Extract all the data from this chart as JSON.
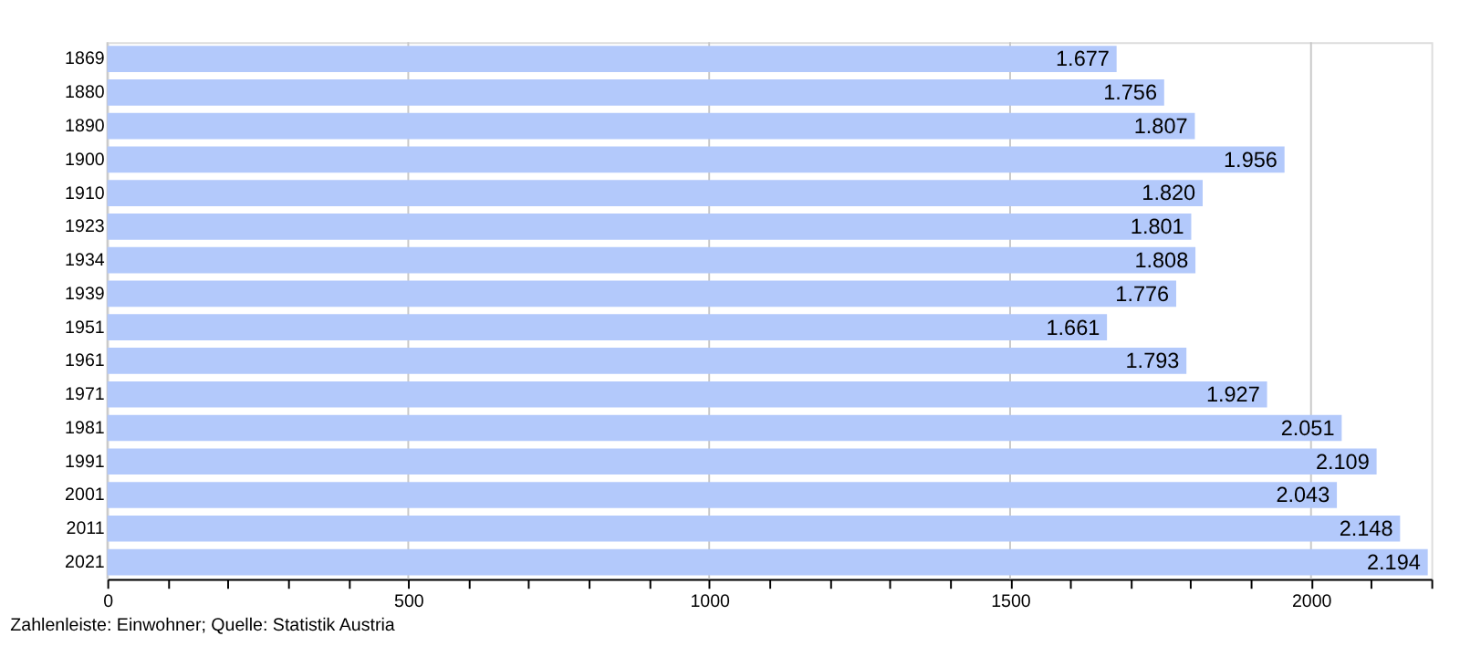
{
  "chart_data": {
    "type": "bar",
    "orientation": "horizontal",
    "categories": [
      "1869",
      "1880",
      "1890",
      "1900",
      "1910",
      "1923",
      "1934",
      "1939",
      "1951",
      "1961",
      "1971",
      "1981",
      "1991",
      "2001",
      "2011",
      "2021"
    ],
    "values": [
      1677,
      1756,
      1807,
      1956,
      1820,
      1801,
      1808,
      1776,
      1661,
      1793,
      1927,
      2051,
      2109,
      2043,
      2148,
      2194
    ],
    "value_labels": [
      "1.677",
      "1.756",
      "1.807",
      "1.956",
      "1.820",
      "1.801",
      "1.808",
      "1.776",
      "1.661",
      "1.793",
      "1.927",
      "2.051",
      "2.109",
      "2.043",
      "2.148",
      "2.194"
    ],
    "color": "#b3c9fb",
    "xlim": [
      0,
      2200
    ],
    "xticks": [
      0,
      {
        "value": 100,
        "label": null
      },
      {
        "value": 200,
        "label": null
      },
      {
        "value": 300,
        "label": null
      },
      {
        "value": 400,
        "label": null
      },
      500,
      {
        "value": 600,
        "label": null
      },
      {
        "value": 700,
        "label": null
      },
      {
        "value": 800,
        "label": null
      },
      {
        "value": 900,
        "label": null
      },
      1000,
      {
        "value": 1100,
        "label": null
      },
      {
        "value": 1200,
        "label": null
      },
      {
        "value": 1300,
        "label": null
      },
      {
        "value": 1400,
        "label": null
      },
      1500,
      {
        "value": 1600,
        "label": null
      },
      {
        "value": 1700,
        "label": null
      },
      {
        "value": 1800,
        "label": null
      },
      {
        "value": 1900,
        "label": null
      },
      2000,
      {
        "value": 2100,
        "label": null
      },
      {
        "value": 2200,
        "label": null
      }
    ],
    "grid": "x",
    "annotations": [
      "Zahlenleiste: Einwohner; Quelle: Statistik Austria"
    ]
  }
}
